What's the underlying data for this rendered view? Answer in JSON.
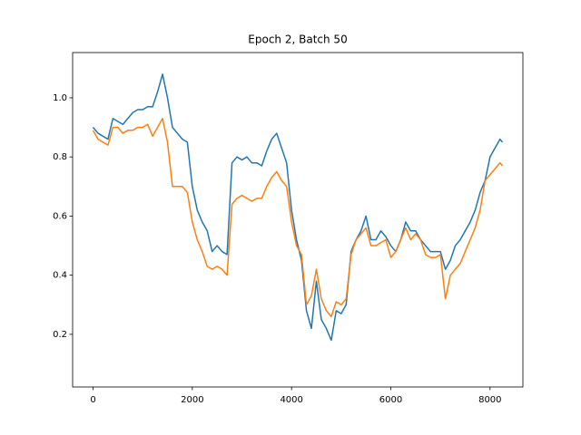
{
  "chart_data": {
    "type": "line",
    "title": "Epoch 2, Batch 50",
    "x": [
      0,
      100,
      200,
      300,
      400,
      500,
      600,
      700,
      800,
      900,
      1000,
      1100,
      1200,
      1300,
      1400,
      1500,
      1600,
      1700,
      1800,
      1900,
      2000,
      2100,
      2200,
      2300,
      2400,
      2500,
      2600,
      2700,
      2800,
      2900,
      3000,
      3100,
      3200,
      3300,
      3400,
      3500,
      3600,
      3700,
      3800,
      3900,
      4000,
      4100,
      4200,
      4300,
      4400,
      4500,
      4600,
      4700,
      4800,
      4900,
      5000,
      5100,
      5200,
      5300,
      5400,
      5500,
      5600,
      5700,
      5800,
      5900,
      6000,
      6100,
      6200,
      6300,
      6400,
      6500,
      6600,
      6700,
      6800,
      6900,
      7000,
      7100,
      7200,
      7300,
      7400,
      7500,
      7600,
      7700,
      7800,
      7900,
      8000,
      8100,
      8200,
      8250
    ],
    "series": [
      {
        "color": "#1f77b4",
        "values": [
          0.9,
          0.88,
          0.87,
          0.86,
          0.93,
          0.92,
          0.91,
          0.93,
          0.95,
          0.96,
          0.96,
          0.97,
          0.97,
          1.02,
          1.08,
          1.0,
          0.9,
          0.88,
          0.86,
          0.85,
          0.7,
          0.62,
          0.58,
          0.55,
          0.48,
          0.5,
          0.48,
          0.47,
          0.78,
          0.8,
          0.79,
          0.8,
          0.78,
          0.78,
          0.77,
          0.82,
          0.86,
          0.88,
          0.83,
          0.78,
          0.62,
          0.52,
          0.45,
          0.28,
          0.22,
          0.38,
          0.25,
          0.22,
          0.18,
          0.28,
          0.27,
          0.3,
          0.48,
          0.52,
          0.55,
          0.6,
          0.52,
          0.52,
          0.55,
          0.53,
          0.5,
          0.48,
          0.52,
          0.58,
          0.55,
          0.55,
          0.52,
          0.5,
          0.48,
          0.48,
          0.48,
          0.42,
          0.45,
          0.5,
          0.52,
          0.55,
          0.58,
          0.62,
          0.68,
          0.72,
          0.8,
          0.83,
          0.86,
          0.85
        ]
      },
      {
        "color": "#ff7f0e",
        "values": [
          0.89,
          0.86,
          0.85,
          0.84,
          0.9,
          0.9,
          0.88,
          0.89,
          0.89,
          0.9,
          0.9,
          0.91,
          0.87,
          0.9,
          0.93,
          0.85,
          0.7,
          0.7,
          0.7,
          0.68,
          0.58,
          0.52,
          0.48,
          0.43,
          0.42,
          0.43,
          0.42,
          0.4,
          0.64,
          0.66,
          0.67,
          0.66,
          0.65,
          0.66,
          0.66,
          0.7,
          0.73,
          0.75,
          0.72,
          0.7,
          0.58,
          0.5,
          0.47,
          0.3,
          0.33,
          0.42,
          0.32,
          0.28,
          0.26,
          0.31,
          0.3,
          0.32,
          0.47,
          0.52,
          0.54,
          0.56,
          0.5,
          0.5,
          0.51,
          0.52,
          0.46,
          0.48,
          0.52,
          0.56,
          0.52,
          0.54,
          0.52,
          0.47,
          0.46,
          0.46,
          0.47,
          0.32,
          0.4,
          0.42,
          0.44,
          0.48,
          0.52,
          0.56,
          0.62,
          0.72,
          0.74,
          0.76,
          0.78,
          0.77
        ]
      }
    ],
    "xlim": [
      -412,
      8662
    ],
    "ylim": [
      0.022,
      1.153
    ],
    "xticks": [
      0,
      2000,
      4000,
      6000,
      8000
    ],
    "yticks": [
      0.2,
      0.4,
      0.6,
      0.8,
      {
        "value": 1,
        "label": "1.0"
      }
    ],
    "grid": false
  }
}
